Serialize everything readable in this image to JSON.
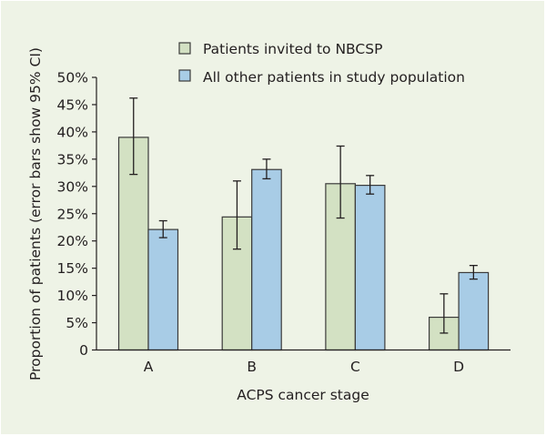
{
  "chart_data": {
    "type": "bar",
    "title": "",
    "xlabel": "ACPS cancer stage",
    "ylabel": "Proportion of patients (error bars show 95% CI)",
    "ylim": [
      0,
      50
    ],
    "yticks": [
      0,
      5,
      10,
      15,
      20,
      25,
      30,
      35,
      40,
      45,
      50
    ],
    "ytick_labels": [
      "0",
      "5%",
      "10%",
      "15%",
      "20%",
      "25%",
      "30%",
      "35%",
      "40%",
      "45%",
      "50%"
    ],
    "categories": [
      "A",
      "B",
      "C",
      "D"
    ],
    "grid": false,
    "legend_position": "top",
    "series": [
      {
        "name": "Patients invited to NBCSP",
        "color": "#d3e1c3",
        "values": [
          39.0,
          24.4,
          30.5,
          6.0
        ],
        "ci_low": [
          32.2,
          18.5,
          24.2,
          3.1
        ],
        "ci_high": [
          46.2,
          31.0,
          37.4,
          10.3
        ]
      },
      {
        "name": "All other patients in study population",
        "color": "#a8cce6",
        "values": [
          22.1,
          33.1,
          30.2,
          14.2
        ],
        "ci_low": [
          20.6,
          31.4,
          28.6,
          13.0
        ],
        "ci_high": [
          23.7,
          35.0,
          32.0,
          15.5
        ]
      }
    ]
  }
}
